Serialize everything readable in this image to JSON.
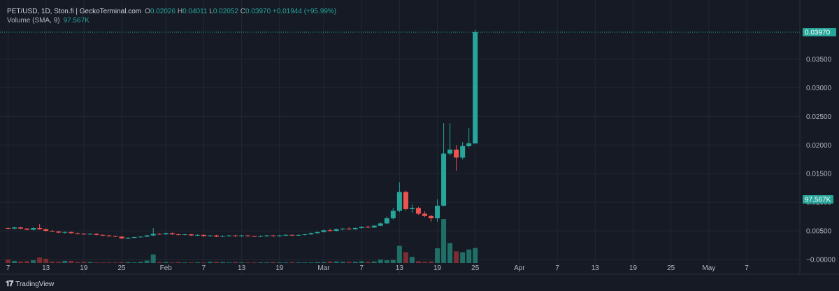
{
  "header": {
    "symbol": "PET/USD, 1D, Ston.fi | GeckoTerminal.com",
    "open_label": "O",
    "open": "0.02026",
    "high_label": "H",
    "high": "0.04011",
    "low_label": "L",
    "low": "0.02052",
    "close_label": "C",
    "close": "0.03970",
    "change": "+0.01944 (+95.99%)",
    "volume_label": "Volume (SMA, 9)",
    "volume_value": "97.567K"
  },
  "brand": {
    "logo_glyph": "𝟏𝟕",
    "name": "TradingView"
  },
  "colors": {
    "up": "#26a69a",
    "down": "#ef5350",
    "up_volume": "#1f6f66",
    "down_volume": "#7a2e34",
    "background": "#161a25",
    "grid": "#232733"
  },
  "chart_data": {
    "type": "candlestick",
    "price_axis": {
      "ticks": [
        "0.03500",
        "0.03000",
        "0.02500",
        "0.02000",
        "0.01500",
        "0.01000",
        "0.00500",
        "0.00000"
      ],
      "tick_values": [
        0.035,
        0.03,
        0.025,
        0.02,
        0.015,
        0.01,
        0.005,
        0.0
      ],
      "range": [
        0.0,
        0.0397
      ],
      "last_price_label": "0.03970",
      "volume_label": "97.567K"
    },
    "time_axis": {
      "labels": [
        "7",
        "13",
        "19",
        "25",
        "Feb",
        "7",
        "13",
        "19",
        "Mar",
        "7",
        "13",
        "19",
        "25",
        "Apr",
        "7",
        "13",
        "19",
        "25",
        "May",
        "7"
      ],
      "label_day_index": [
        0,
        6,
        12,
        18,
        25,
        31,
        37,
        43,
        50,
        56,
        62,
        68,
        74,
        81,
        87,
        93,
        99,
        105,
        111,
        117
      ]
    },
    "candles": [
      {
        "d": 0,
        "o": 0.0055,
        "h": 0.0056,
        "l": 0.0053,
        "c": 0.0054
      },
      {
        "d": 1,
        "o": 0.0054,
        "h": 0.0057,
        "l": 0.0053,
        "c": 0.0056
      },
      {
        "d": 2,
        "o": 0.0056,
        "h": 0.0057,
        "l": 0.0053,
        "c": 0.0054
      },
      {
        "d": 3,
        "o": 0.0054,
        "h": 0.0055,
        "l": 0.0051,
        "c": 0.0052
      },
      {
        "d": 4,
        "o": 0.0052,
        "h": 0.0056,
        "l": 0.0051,
        "c": 0.0055
      },
      {
        "d": 5,
        "o": 0.0055,
        "h": 0.0062,
        "l": 0.0052,
        "c": 0.0053
      },
      {
        "d": 6,
        "o": 0.0053,
        "h": 0.0054,
        "l": 0.0049,
        "c": 0.005
      },
      {
        "d": 7,
        "o": 0.005,
        "h": 0.0052,
        "l": 0.0048,
        "c": 0.0049
      },
      {
        "d": 8,
        "o": 0.0049,
        "h": 0.005,
        "l": 0.0046,
        "c": 0.0047
      },
      {
        "d": 9,
        "o": 0.0047,
        "h": 0.0049,
        "l": 0.0045,
        "c": 0.0048
      },
      {
        "d": 10,
        "o": 0.0048,
        "h": 0.0049,
        "l": 0.0045,
        "c": 0.0046
      },
      {
        "d": 11,
        "o": 0.0046,
        "h": 0.0047,
        "l": 0.0044,
        "c": 0.0045
      },
      {
        "d": 12,
        "o": 0.0045,
        "h": 0.0046,
        "l": 0.0043,
        "c": 0.0044
      },
      {
        "d": 13,
        "o": 0.0044,
        "h": 0.0046,
        "l": 0.0043,
        "c": 0.0045
      },
      {
        "d": 14,
        "o": 0.0045,
        "h": 0.0046,
        "l": 0.0042,
        "c": 0.0043
      },
      {
        "d": 15,
        "o": 0.0043,
        "h": 0.0044,
        "l": 0.0041,
        "c": 0.0042
      },
      {
        "d": 16,
        "o": 0.0042,
        "h": 0.0043,
        "l": 0.004,
        "c": 0.0041
      },
      {
        "d": 17,
        "o": 0.0041,
        "h": 0.0042,
        "l": 0.0039,
        "c": 0.004
      },
      {
        "d": 18,
        "o": 0.004,
        "h": 0.0041,
        "l": 0.0036,
        "c": 0.0037
      },
      {
        "d": 19,
        "o": 0.0037,
        "h": 0.0039,
        "l": 0.0036,
        "c": 0.0038
      },
      {
        "d": 20,
        "o": 0.0038,
        "h": 0.004,
        "l": 0.0037,
        "c": 0.0039
      },
      {
        "d": 21,
        "o": 0.0039,
        "h": 0.0041,
        "l": 0.0038,
        "c": 0.004
      },
      {
        "d": 22,
        "o": 0.004,
        "h": 0.0043,
        "l": 0.0039,
        "c": 0.0042
      },
      {
        "d": 23,
        "o": 0.0042,
        "h": 0.0055,
        "l": 0.0041,
        "c": 0.0045
      },
      {
        "d": 24,
        "o": 0.0045,
        "h": 0.0046,
        "l": 0.0043,
        "c": 0.0044
      },
      {
        "d": 25,
        "o": 0.0044,
        "h": 0.0047,
        "l": 0.0043,
        "c": 0.0046
      },
      {
        "d": 26,
        "o": 0.0046,
        "h": 0.0047,
        "l": 0.0043,
        "c": 0.0044
      },
      {
        "d": 27,
        "o": 0.0044,
        "h": 0.0045,
        "l": 0.0042,
        "c": 0.0043
      },
      {
        "d": 28,
        "o": 0.0043,
        "h": 0.0045,
        "l": 0.0042,
        "c": 0.0044
      },
      {
        "d": 29,
        "o": 0.0044,
        "h": 0.0045,
        "l": 0.0041,
        "c": 0.0042
      },
      {
        "d": 30,
        "o": 0.0042,
        "h": 0.0044,
        "l": 0.0041,
        "c": 0.0043
      },
      {
        "d": 31,
        "o": 0.0043,
        "h": 0.0044,
        "l": 0.004,
        "c": 0.0041
      },
      {
        "d": 32,
        "o": 0.0041,
        "h": 0.0043,
        "l": 0.004,
        "c": 0.0042
      },
      {
        "d": 33,
        "o": 0.0042,
        "h": 0.0043,
        "l": 0.0039,
        "c": 0.004
      },
      {
        "d": 34,
        "o": 0.004,
        "h": 0.0042,
        "l": 0.0039,
        "c": 0.0041
      },
      {
        "d": 35,
        "o": 0.0041,
        "h": 0.0043,
        "l": 0.004,
        "c": 0.0042
      },
      {
        "d": 36,
        "o": 0.0042,
        "h": 0.0043,
        "l": 0.004,
        "c": 0.0041
      },
      {
        "d": 37,
        "o": 0.0041,
        "h": 0.0043,
        "l": 0.004,
        "c": 0.0042
      },
      {
        "d": 38,
        "o": 0.0042,
        "h": 0.0043,
        "l": 0.004,
        "c": 0.0041
      },
      {
        "d": 39,
        "o": 0.0041,
        "h": 0.0042,
        "l": 0.0039,
        "c": 0.004
      },
      {
        "d": 40,
        "o": 0.004,
        "h": 0.0042,
        "l": 0.0039,
        "c": 0.0041
      },
      {
        "d": 41,
        "o": 0.0041,
        "h": 0.0043,
        "l": 0.004,
        "c": 0.0042
      },
      {
        "d": 42,
        "o": 0.0042,
        "h": 0.0043,
        "l": 0.004,
        "c": 0.0041
      },
      {
        "d": 43,
        "o": 0.0041,
        "h": 0.0043,
        "l": 0.004,
        "c": 0.0042
      },
      {
        "d": 44,
        "o": 0.0042,
        "h": 0.0044,
        "l": 0.0041,
        "c": 0.0043
      },
      {
        "d": 45,
        "o": 0.0043,
        "h": 0.0044,
        "l": 0.0041,
        "c": 0.0042
      },
      {
        "d": 46,
        "o": 0.0042,
        "h": 0.0044,
        "l": 0.0041,
        "c": 0.0043
      },
      {
        "d": 47,
        "o": 0.0043,
        "h": 0.0045,
        "l": 0.0042,
        "c": 0.0044
      },
      {
        "d": 48,
        "o": 0.0044,
        "h": 0.0047,
        "l": 0.0043,
        "c": 0.0046
      },
      {
        "d": 49,
        "o": 0.0046,
        "h": 0.0049,
        "l": 0.0045,
        "c": 0.0048
      },
      {
        "d": 50,
        "o": 0.0048,
        "h": 0.0052,
        "l": 0.0047,
        "c": 0.0051
      },
      {
        "d": 51,
        "o": 0.0051,
        "h": 0.0054,
        "l": 0.0049,
        "c": 0.005
      },
      {
        "d": 52,
        "o": 0.005,
        "h": 0.0054,
        "l": 0.0049,
        "c": 0.0053
      },
      {
        "d": 53,
        "o": 0.0053,
        "h": 0.0055,
        "l": 0.0051,
        "c": 0.0054
      },
      {
        "d": 54,
        "o": 0.0054,
        "h": 0.0056,
        "l": 0.0052,
        "c": 0.0053
      },
      {
        "d": 55,
        "o": 0.0053,
        "h": 0.0056,
        "l": 0.0052,
        "c": 0.0055
      },
      {
        "d": 56,
        "o": 0.0055,
        "h": 0.0058,
        "l": 0.0054,
        "c": 0.0057
      },
      {
        "d": 57,
        "o": 0.0057,
        "h": 0.0059,
        "l": 0.0055,
        "c": 0.0056
      },
      {
        "d": 58,
        "o": 0.0056,
        "h": 0.006,
        "l": 0.0055,
        "c": 0.0059
      },
      {
        "d": 59,
        "o": 0.0059,
        "h": 0.0065,
        "l": 0.0058,
        "c": 0.0063
      },
      {
        "d": 60,
        "o": 0.0063,
        "h": 0.0075,
        "l": 0.0062,
        "c": 0.0072
      },
      {
        "d": 61,
        "o": 0.0072,
        "h": 0.009,
        "l": 0.007,
        "c": 0.0085
      },
      {
        "d": 62,
        "o": 0.0085,
        "h": 0.0135,
        "l": 0.0083,
        "c": 0.0118
      },
      {
        "d": 63,
        "o": 0.0118,
        "h": 0.012,
        "l": 0.0085,
        "c": 0.0088
      },
      {
        "d": 64,
        "o": 0.0088,
        "h": 0.0096,
        "l": 0.0082,
        "c": 0.009
      },
      {
        "d": 65,
        "o": 0.009,
        "h": 0.0092,
        "l": 0.0078,
        "c": 0.008
      },
      {
        "d": 66,
        "o": 0.008,
        "h": 0.0084,
        "l": 0.0074,
        "c": 0.0076
      },
      {
        "d": 67,
        "o": 0.0076,
        "h": 0.0078,
        "l": 0.0066,
        "c": 0.0072
      },
      {
        "d": 68,
        "o": 0.0072,
        "h": 0.0105,
        "l": 0.0066,
        "c": 0.0094
      },
      {
        "d": 69,
        "o": 0.0094,
        "h": 0.0238,
        "l": 0.0093,
        "c": 0.0185
      },
      {
        "d": 70,
        "o": 0.0185,
        "h": 0.0238,
        "l": 0.0182,
        "c": 0.0192
      },
      {
        "d": 71,
        "o": 0.0192,
        "h": 0.02,
        "l": 0.0155,
        "c": 0.0178
      },
      {
        "d": 72,
        "o": 0.0178,
        "h": 0.0205,
        "l": 0.0175,
        "c": 0.0198
      },
      {
        "d": 73,
        "o": 0.0198,
        "h": 0.023,
        "l": 0.0196,
        "c": 0.0203
      },
      {
        "d": 74,
        "o": 0.02026,
        "h": 0.04011,
        "l": 0.02052,
        "c": 0.0397
      }
    ],
    "volume": {
      "axis_max_k": 400,
      "values_k": [
        22,
        14,
        10,
        12,
        18,
        36,
        28,
        10,
        8,
        14,
        14,
        6,
        8,
        6,
        4,
        4,
        4,
        4,
        6,
        6,
        4,
        8,
        16,
        56,
        6,
        6,
        4,
        6,
        4,
        4,
        4,
        4,
        8,
        8,
        6,
        4,
        6,
        4,
        4,
        4,
        4,
        4,
        6,
        4,
        4,
        6,
        4,
        4,
        4,
        6,
        6,
        10,
        10,
        8,
        8,
        8,
        12,
        8,
        10,
        22,
        18,
        20,
        112,
        70,
        40,
        12,
        8,
        10,
        96,
        286,
        130,
        76,
        70,
        88,
        98
      ]
    }
  }
}
